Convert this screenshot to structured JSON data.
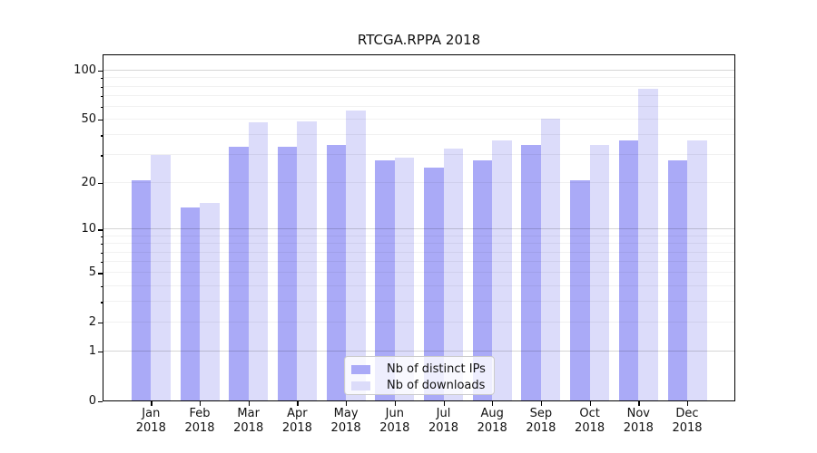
{
  "figure": {
    "title": "RTCGA.RPPA 2018"
  },
  "chart_data": {
    "type": "bar",
    "title": "RTCGA.RPPA 2018",
    "categories": [
      "Jan 2018",
      "Feb 2018",
      "Mar 2018",
      "Apr 2018",
      "May 2018",
      "Jun 2018",
      "Jul 2018",
      "Aug 2018",
      "Sep 2018",
      "Oct 2018",
      "Nov 2018",
      "Dec 2018"
    ],
    "x_tick_months": [
      "Jan",
      "Feb",
      "Mar",
      "Apr",
      "May",
      "Jun",
      "Jul",
      "Aug",
      "Sep",
      "Oct",
      "Nov",
      "Dec"
    ],
    "x_tick_year": "2018",
    "series": [
      {
        "name": "Nb of distinct IPs",
        "color": "#aaaaf7",
        "values": [
          21,
          14,
          34,
          34,
          35,
          28,
          25,
          28,
          35,
          21,
          37,
          28
        ]
      },
      {
        "name": "Nb of downloads",
        "color": "#dcdcfa",
        "values": [
          30,
          15,
          48,
          49,
          57,
          29,
          33,
          37,
          51,
          35,
          77,
          37
        ]
      }
    ],
    "y_axis": {
      "scale": "log1p",
      "ticks": [
        100,
        50,
        20,
        10,
        5,
        2,
        1,
        0
      ],
      "major_gridlines": [
        1,
        10,
        100
      ],
      "minor_gridlines": [
        2,
        3,
        4,
        5,
        6,
        7,
        8,
        9,
        20,
        30,
        40,
        50,
        60,
        70,
        80,
        90
      ]
    },
    "xlabel": "",
    "ylabel": "",
    "grid": true,
    "legend_position": "lower center",
    "colors": {
      "bar_dark": "#aaaaf7",
      "bar_light": "#dcdcfa",
      "grid_major": "#d6d6d6",
      "grid_minor": "#f1f1f1"
    }
  }
}
